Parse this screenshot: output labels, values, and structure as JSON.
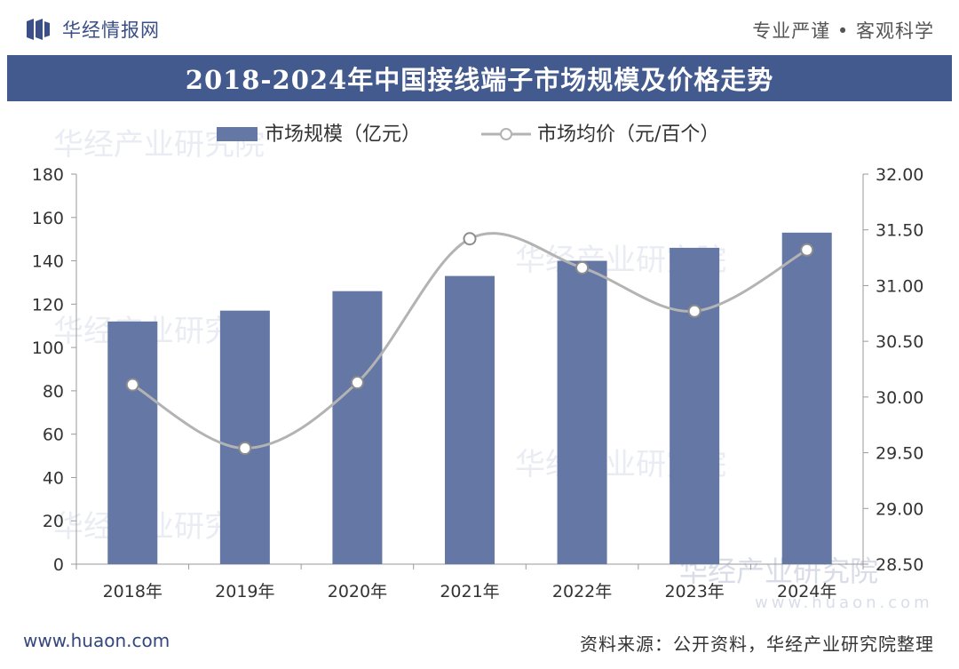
{
  "header": {
    "brand": "华经情报网",
    "slogan": "专业严谨 • 客观科学"
  },
  "watermark": {
    "text": "华经产业研究院",
    "url": "www.huaon.com"
  },
  "footer": {
    "website": "www.huaon.com",
    "source": "资料来源：公开资料，华经产业研究院整理"
  },
  "colors": {
    "bar": "#6477a5",
    "line": "#b3b3b3",
    "title_bg": "#435a8e"
  },
  "chart_data": {
    "type": "bar",
    "title": "2018-2024年中国接线端子市场规模及价格走势",
    "categories": [
      "2018年",
      "2019年",
      "2020年",
      "2021年",
      "2022年",
      "2023年",
      "2024年"
    ],
    "series": [
      {
        "name": "市场规模（亿元）",
        "type": "bar",
        "axis": "left",
        "values": [
          112,
          117,
          126,
          133,
          140,
          146,
          153
        ]
      },
      {
        "name": "市场均价（元/百个）",
        "type": "line",
        "axis": "right",
        "values": [
          30.11,
          29.54,
          30.13,
          31.42,
          31.16,
          30.77,
          31.32
        ]
      }
    ],
    "ylim": [
      0,
      180
    ],
    "yticks": [
      "0",
      "20",
      "40",
      "60",
      "80",
      "100",
      "120",
      "140",
      "160",
      "180"
    ],
    "y2lim": [
      28.5,
      32.0
    ],
    "y2ticks": [
      "28.50",
      "29.00",
      "29.50",
      "30.00",
      "30.50",
      "31.00",
      "31.50",
      "32.00"
    ],
    "legend": "top-center"
  }
}
